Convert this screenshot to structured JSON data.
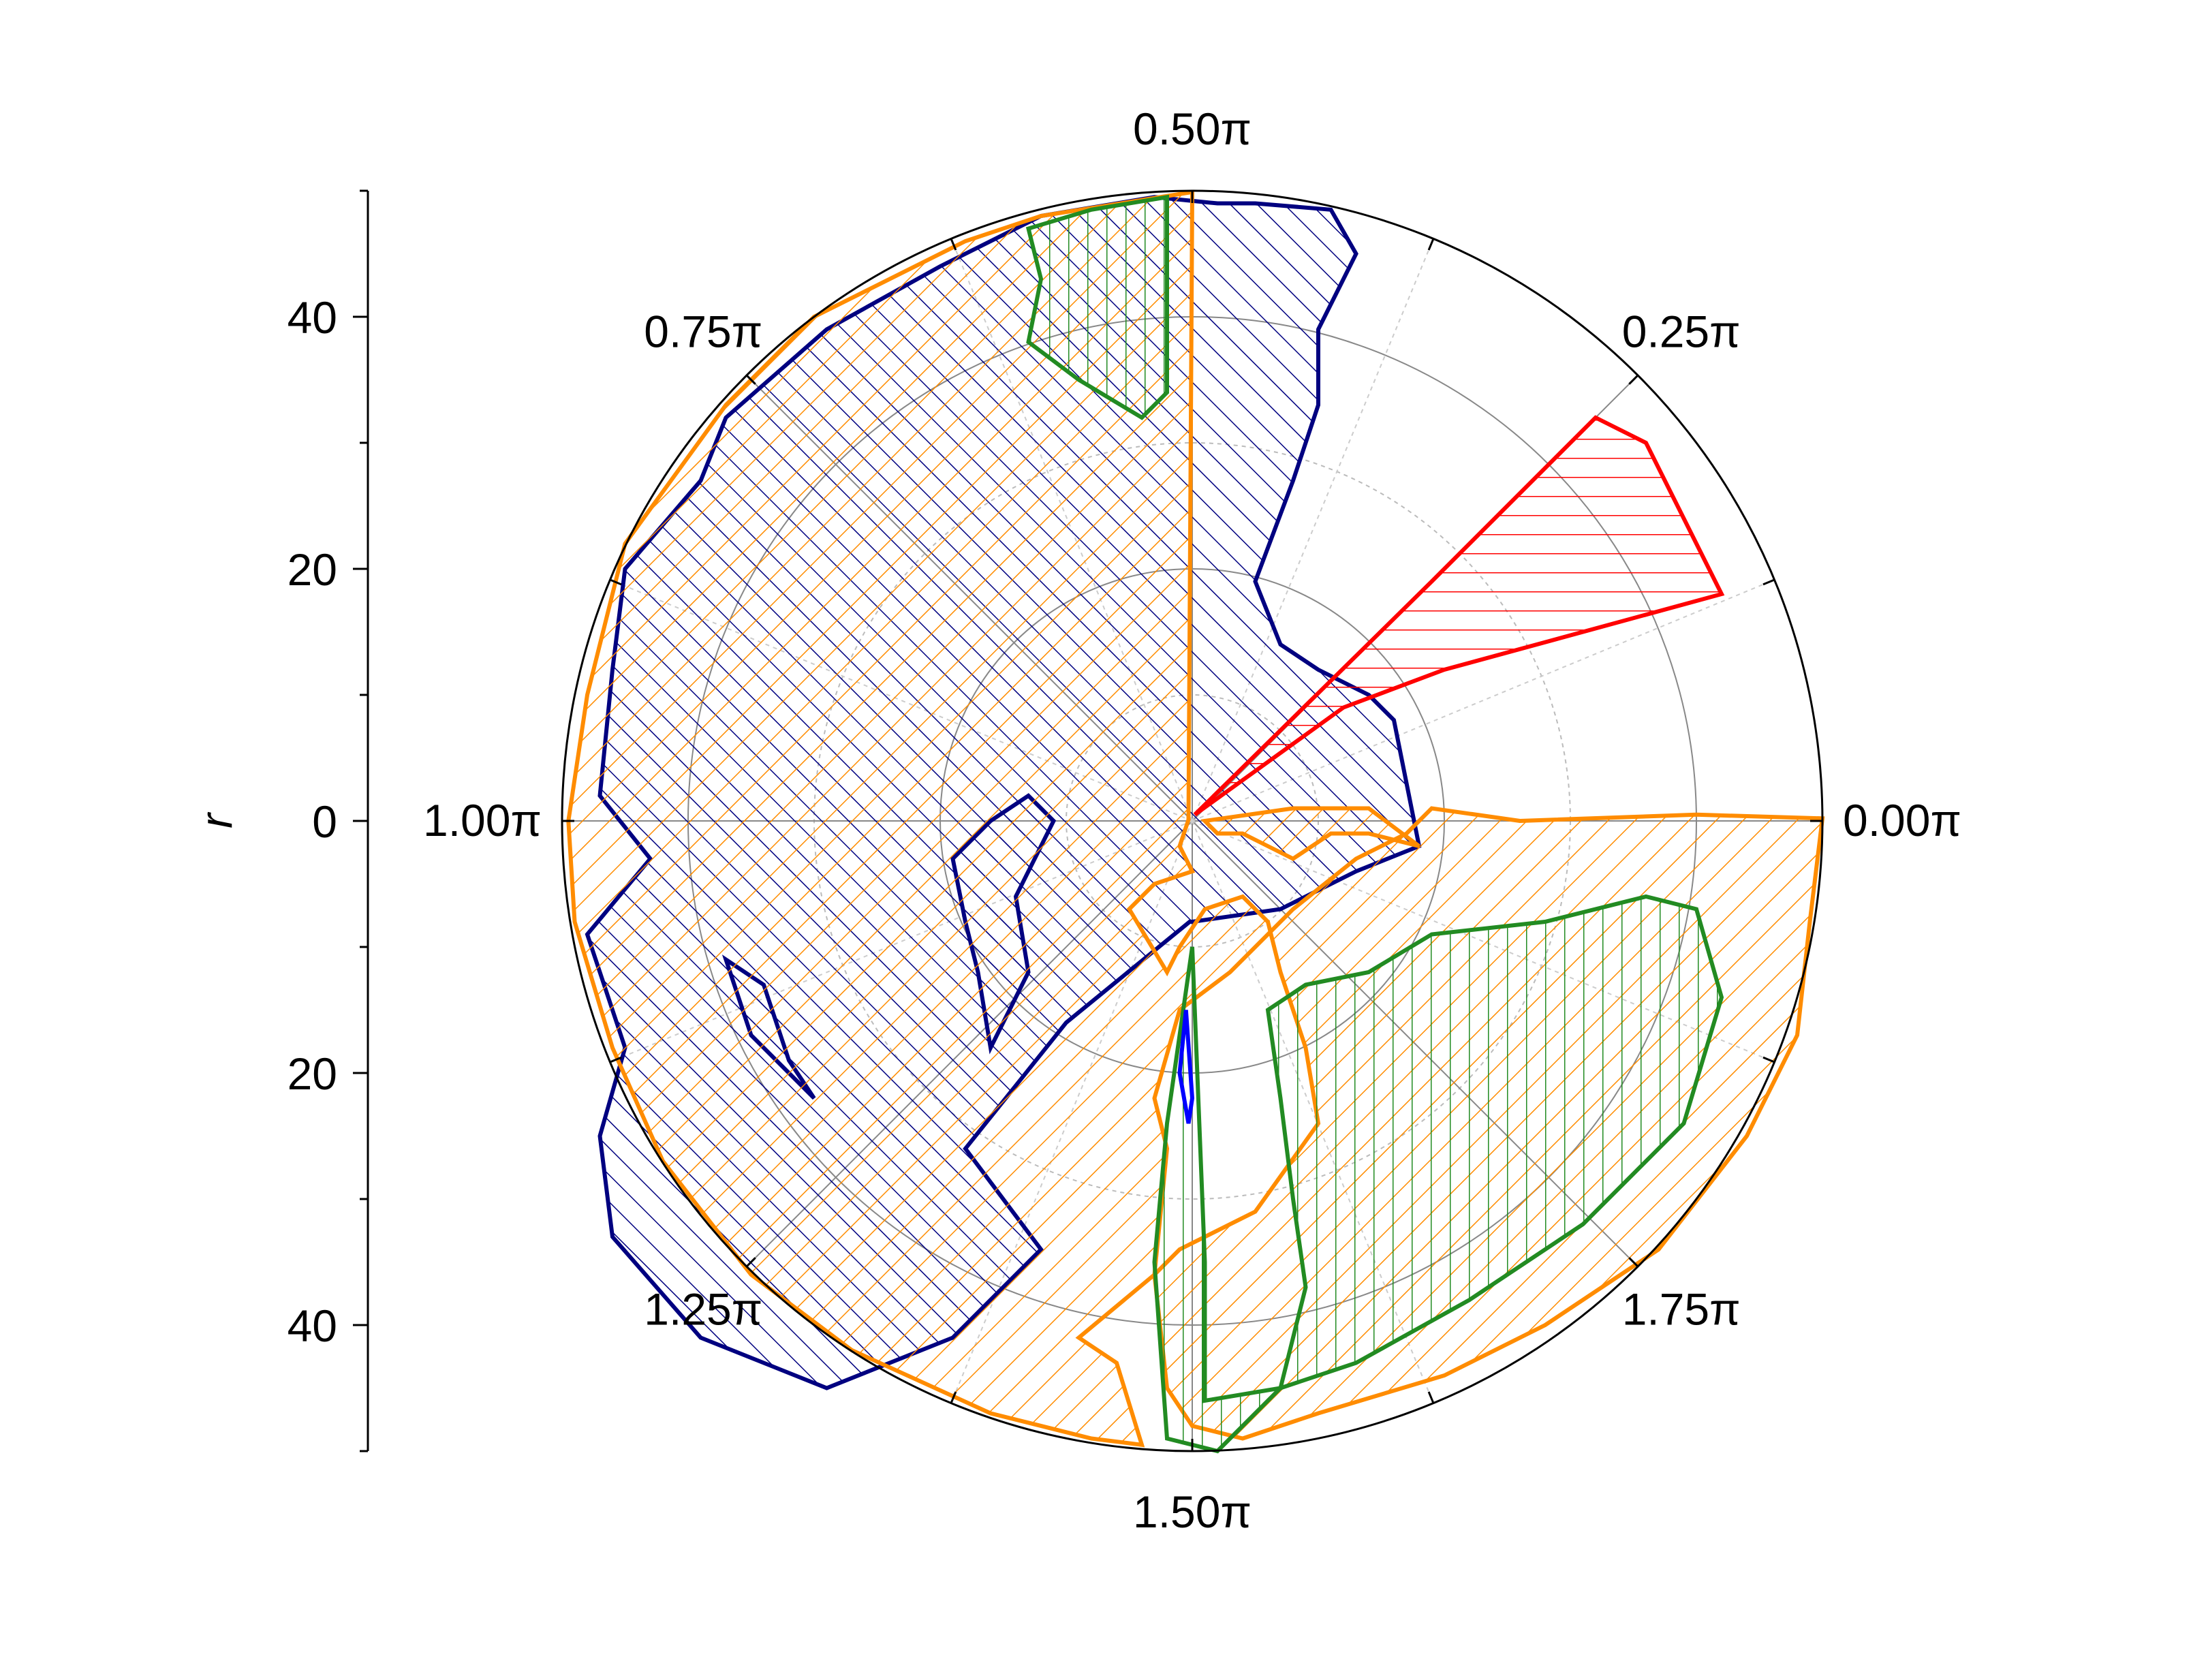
{
  "chart_data": {
    "type": "polar-area",
    "r_axis": {
      "label": "r",
      "lim": [
        0,
        50
      ],
      "ticks": [
        40,
        20,
        0,
        20,
        40
      ],
      "tick_labels": [
        "40",
        "20",
        "0",
        "20",
        "40"
      ]
    },
    "angle_axis": {
      "unit": "π",
      "labels": [
        {
          "theta": 0.0,
          "text": "0.00π"
        },
        {
          "theta": 0.25,
          "text": "0.25π"
        },
        {
          "theta": 0.5,
          "text": "0.50π"
        },
        {
          "theta": 0.75,
          "text": "0.75π"
        },
        {
          "theta": 1.0,
          "text": "1.00π"
        },
        {
          "theta": 1.25,
          "text": "1.25π"
        },
        {
          "theta": 1.5,
          "text": "1.50π"
        },
        {
          "theta": 1.75,
          "text": "1.75π"
        }
      ]
    },
    "radial_grid": [
      10,
      20,
      30,
      40,
      50
    ],
    "series": [
      {
        "color": "#000080",
        "hatch": "forward-diagonal",
        "points": [
          [
            -0.2,
            -8
          ],
          [
            -10,
            -16
          ],
          [
            -18,
            -26
          ],
          [
            -12,
            -34
          ],
          [
            -19,
            -41
          ],
          [
            -29,
            -45
          ],
          [
            -39,
            -41
          ],
          [
            -46,
            -33
          ],
          [
            -47,
            -25
          ],
          [
            -45,
            -18
          ],
          [
            -48,
            -9
          ],
          [
            -43,
            -3
          ],
          [
            -47,
            2
          ],
          [
            -46,
            12
          ],
          [
            -45,
            20
          ],
          [
            -39,
            27
          ],
          [
            -37,
            32
          ],
          [
            -29,
            39
          ],
          [
            -20,
            44
          ],
          [
            -12,
            48
          ],
          [
            -3,
            49.5
          ],
          [
            2,
            49
          ],
          [
            5,
            49
          ],
          [
            11,
            48.5
          ],
          [
            13,
            45
          ],
          [
            10,
            39
          ],
          [
            10,
            33
          ],
          [
            8,
            27
          ],
          [
            5,
            19
          ],
          [
            7,
            14
          ],
          [
            10,
            12
          ],
          [
            14,
            10
          ],
          [
            16,
            8
          ],
          [
            17,
            3
          ],
          [
            18,
            -2
          ],
          [
            13,
            -4
          ],
          [
            7,
            -7
          ],
          [
            0,
            -8
          ]
        ]
      },
      {
        "color": "#000080",
        "hatch": "forward-diagonal",
        "points": [
          [
            -16,
            -18
          ],
          [
            -13,
            -12
          ],
          [
            -14,
            -6
          ],
          [
            -11,
            0
          ],
          [
            -13,
            2
          ],
          [
            -16,
            0
          ],
          [
            -19,
            -3
          ],
          [
            -18,
            -8
          ],
          [
            -17,
            -12
          ],
          [
            -16,
            -18
          ]
        ]
      },
      {
        "color": "#000080",
        "hatch": "forward-diagonal",
        "points": [
          [
            -37,
            -11
          ],
          [
            -35,
            -17
          ],
          [
            -30,
            -22
          ],
          [
            -32,
            -19
          ],
          [
            -34,
            -13
          ],
          [
            -37,
            -11
          ]
        ]
      },
      {
        "color": "#FF8C00",
        "hatch": "back-diagonal",
        "points": [
          [
            -0.3,
            0.1
          ],
          [
            0,
            49.9
          ],
          [
            -12,
            48
          ],
          [
            -18,
            46
          ],
          [
            -30,
            40
          ],
          [
            -37,
            33
          ],
          [
            -45,
            22
          ],
          [
            -48,
            10
          ],
          [
            -49.5,
            0
          ],
          [
            -49,
            -8
          ],
          [
            -46,
            -18
          ],
          [
            -42,
            -27
          ],
          [
            -35,
            -36
          ],
          [
            -27,
            -42
          ],
          [
            -16,
            -47
          ],
          [
            -8,
            -49
          ],
          [
            -4,
            -49.5
          ],
          [
            -6,
            -43
          ],
          [
            -9,
            -41
          ],
          [
            -3,
            -36
          ],
          [
            -2,
            -26
          ],
          [
            -3,
            -22
          ],
          [
            -1,
            -15
          ],
          [
            3,
            -12
          ],
          [
            8,
            -7
          ],
          [
            13,
            -3
          ],
          [
            17,
            -1
          ],
          [
            19,
            1
          ],
          [
            26,
            0
          ],
          [
            40,
            0.5
          ],
          [
            50,
            0.2
          ],
          [
            49,
            -8
          ],
          [
            48,
            -17
          ],
          [
            44,
            -25
          ],
          [
            37,
            -34
          ],
          [
            28,
            -40
          ],
          [
            20,
            -44
          ],
          [
            10,
            -47
          ],
          [
            4,
            -49
          ],
          [
            0,
            -48
          ],
          [
            -2,
            -45
          ],
          [
            -3,
            -36
          ],
          [
            -1,
            -34
          ],
          [
            5,
            -31
          ],
          [
            10,
            -24
          ],
          [
            9,
            -18
          ],
          [
            7,
            -12
          ],
          [
            6,
            -8
          ],
          [
            4,
            -6
          ],
          [
            1,
            -7
          ],
          [
            -1,
            -10
          ],
          [
            -2,
            -12
          ],
          [
            -5,
            -7
          ],
          [
            -3,
            -5
          ],
          [
            0,
            -4
          ],
          [
            -1,
            -2
          ],
          [
            -0.3,
            0.1
          ]
        ]
      },
      {
        "color": "#FF8C00",
        "hatch": "back-diagonal",
        "points": [
          [
            1,
            0
          ],
          [
            8,
            1
          ],
          [
            14,
            1
          ],
          [
            18,
            -2
          ],
          [
            14,
            -1
          ],
          [
            11,
            -1
          ],
          [
            8,
            -3
          ],
          [
            6,
            -2
          ],
          [
            4,
            -1
          ],
          [
            2,
            -1
          ],
          [
            1,
            0
          ]
        ]
      },
      {
        "color": "#228B22",
        "hatch": "vertical",
        "points": [
          [
            -13,
            47
          ],
          [
            -12,
            43
          ],
          [
            -13,
            38
          ],
          [
            -9,
            35
          ],
          [
            -4,
            32
          ],
          [
            -2,
            34
          ],
          [
            -2,
            38
          ],
          [
            -2,
            46
          ],
          [
            -2,
            49.5
          ],
          [
            -8,
            48.5
          ],
          [
            -13,
            47
          ]
        ]
      },
      {
        "color": "#228B22",
        "hatch": "vertical",
        "points": [
          [
            0,
            -10
          ],
          [
            1,
            -35
          ],
          [
            1,
            -46
          ],
          [
            7,
            -45
          ],
          [
            9,
            -37
          ],
          [
            8,
            -30
          ],
          [
            7,
            -22
          ],
          [
            6,
            -15
          ],
          [
            9,
            -13
          ],
          [
            14,
            -12
          ],
          [
            19,
            -9
          ],
          [
            28,
            -8
          ],
          [
            36,
            -6
          ],
          [
            40,
            -7
          ],
          [
            42,
            -14
          ],
          [
            39,
            -24
          ],
          [
            31,
            -32
          ],
          [
            22,
            -38
          ],
          [
            13,
            -43
          ],
          [
            7,
            -45
          ],
          [
            2,
            -50
          ],
          [
            -2,
            -49
          ],
          [
            -3,
            -35
          ],
          [
            -2,
            -24
          ],
          [
            0,
            -10
          ]
        ]
      },
      {
        "color": "#FF0000",
        "hatch": "horizontal",
        "points": [
          [
            0.2,
            0.5
          ],
          [
            19,
            19
          ],
          [
            32,
            32
          ],
          [
            36,
            30
          ],
          [
            40,
            22
          ],
          [
            42,
            18
          ],
          [
            20,
            12
          ],
          [
            12,
            9
          ],
          [
            0.2,
            0.5
          ]
        ]
      },
      {
        "color": "#0000FF",
        "hatch": "none",
        "points": [
          [
            -0.5,
            -15
          ],
          [
            -1,
            -20
          ],
          [
            -0.3,
            -24
          ],
          [
            0,
            -22
          ],
          [
            -0.5,
            -15
          ]
        ]
      }
    ]
  }
}
